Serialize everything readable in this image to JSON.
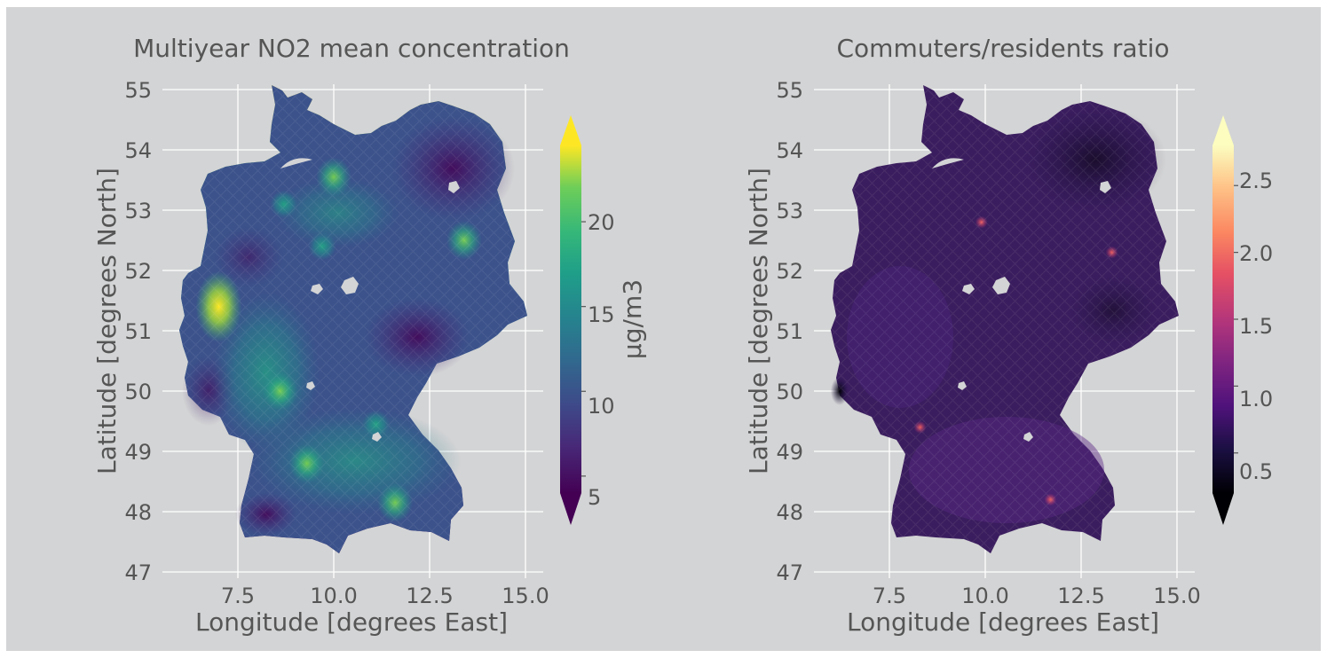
{
  "panels": [
    {
      "title": "Multiyear NO2 mean concentration",
      "xlabel": "Longitude [degrees East]",
      "ylabel": "Latitude [degrees North]",
      "xticks": [
        "7.5",
        "10.0",
        "12.5",
        "15.0"
      ],
      "yticks": [
        "55",
        "54",
        "53",
        "52",
        "51",
        "50",
        "49",
        "48",
        "47"
      ],
      "colorbar": {
        "label": "μg/m3",
        "ticks": [
          "20",
          "15",
          "10",
          "5"
        ],
        "tick_values": [
          20,
          15,
          10,
          5
        ],
        "range": [
          4,
          24.5
        ],
        "colormap": "viridis",
        "extend": "both"
      }
    },
    {
      "title": "Commuters/residents ratio",
      "xlabel": "Longitude [degrees East]",
      "ylabel": "Latitude [degrees North]",
      "xticks": [
        "7.5",
        "10.0",
        "12.5",
        "15.0"
      ],
      "yticks": [
        "55",
        "54",
        "53",
        "52",
        "51",
        "50",
        "49",
        "48",
        "47"
      ],
      "colorbar": {
        "label": "",
        "ticks": [
          "2.5",
          "2.0",
          "1.5",
          "1.0",
          "0.5"
        ],
        "tick_values": [
          2.5,
          2.0,
          1.5,
          1.0,
          0.5
        ],
        "range": [
          0.2,
          2.8
        ],
        "colormap": "magma",
        "extend": "both"
      }
    }
  ],
  "chart_data": [
    {
      "type": "heatmap",
      "title": "Multiyear NO2 mean concentration",
      "xlabel": "Longitude [degrees East]",
      "ylabel": "Latitude [degrees North]",
      "xlim": [
        5.6,
        15.6
      ],
      "ylim": [
        46.9,
        55.3
      ],
      "grid": true,
      "colorbar_label": "μg/m3",
      "hotspots": [
        {
          "lon": 7.0,
          "lat": 51.4,
          "value": 23
        },
        {
          "lon": 8.6,
          "lat": 50.0,
          "value": 19
        },
        {
          "lon": 9.3,
          "lat": 48.8,
          "value": 17
        },
        {
          "lon": 13.4,
          "lat": 52.5,
          "value": 16
        },
        {
          "lon": 10.0,
          "lat": 53.55,
          "value": 16
        },
        {
          "lon": 11.6,
          "lat": 48.15,
          "value": 16
        },
        {
          "lon": 11.1,
          "lat": 49.45,
          "value": 15
        },
        {
          "lon": 8.7,
          "lat": 53.1,
          "value": 14
        },
        {
          "lon": 9.7,
          "lat": 52.4,
          "value": 13
        }
      ]
    },
    {
      "type": "heatmap",
      "title": "Commuters/residents ratio",
      "xlabel": "Longitude [degrees East]",
      "ylabel": "Latitude [degrees North]",
      "xlim": [
        5.6,
        15.6
      ],
      "ylim": [
        46.9,
        55.3
      ],
      "grid": true,
      "colorbar_label": "",
      "hotspots": [
        {
          "lon": 9.9,
          "lat": 52.8,
          "value": 2.1
        },
        {
          "lon": 11.7,
          "lat": 48.2,
          "value": 1.8
        },
        {
          "lon": 8.3,
          "lat": 49.4,
          "value": 1.6
        },
        {
          "lon": 13.3,
          "lat": 52.3,
          "value": 1.5
        },
        {
          "lon": 6.2,
          "lat": 50.0,
          "value": 0.2
        }
      ]
    }
  ]
}
